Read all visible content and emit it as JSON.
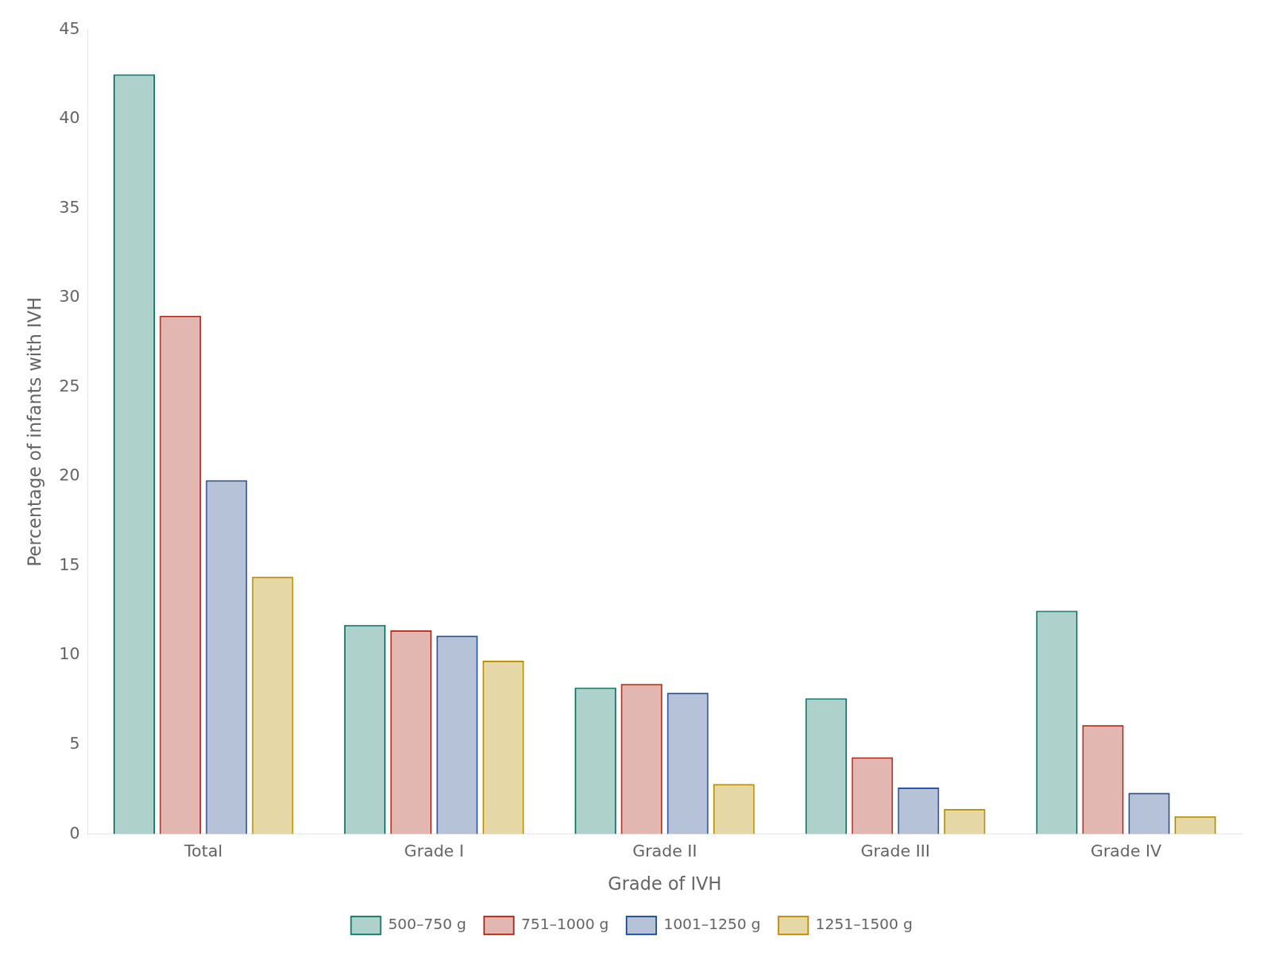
{
  "chart_data": {
    "type": "bar",
    "xlabel": "Grade of IVH",
    "ylabel": "Percentage of infants with IVH",
    "categories": [
      "Total",
      "Grade I",
      "Grade II",
      "Grade III",
      "Grade IV"
    ],
    "series": [
      {
        "name": "500–750 g",
        "color": "#1a7a6e",
        "values": [
          42.5,
          11.7,
          8.2,
          7.6,
          12.5
        ]
      },
      {
        "name": "751–1000 g",
        "color": "#b03020",
        "values": [
          29.0,
          11.4,
          8.4,
          4.3,
          6.1
        ]
      },
      {
        "name": "1001–1250 g",
        "color": "#2a4f90",
        "values": [
          19.8,
          11.1,
          7.9,
          2.6,
          2.3
        ]
      },
      {
        "name": "1251–1500 g",
        "color": "#b89000",
        "values": [
          14.4,
          9.7,
          2.8,
          1.4,
          1.0
        ]
      }
    ],
    "ylim": [
      0,
      45
    ],
    "yticks": [
      0,
      5,
      10,
      15,
      20,
      25,
      30,
      35,
      40,
      45
    ],
    "grid": false,
    "legend": "bottom"
  }
}
